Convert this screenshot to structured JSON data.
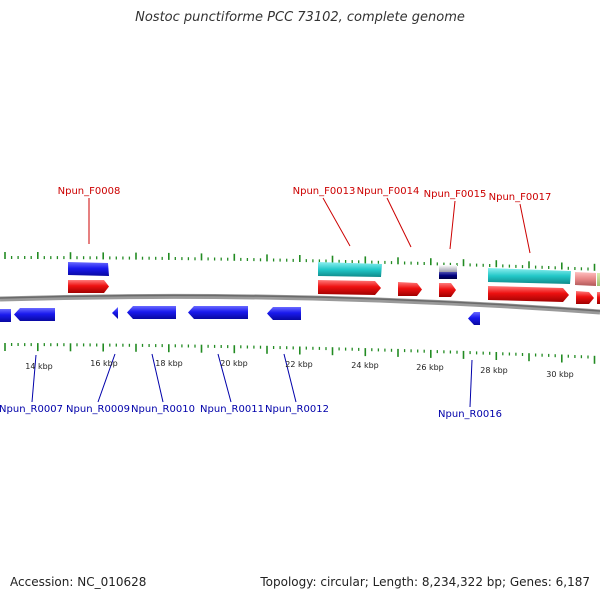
{
  "title": "Nostoc punctiforme PCC 73102, complete genome",
  "footer": {
    "accession": "Accession: NC_010628",
    "summary": "Topology: circular; Length: 8,234,322 bp; Genes: 6,187"
  },
  "colors": {
    "forward_label": "#cc0000",
    "reverse_label": "#0000aa",
    "tick": "#228b22",
    "backbone": "#808080",
    "blue_gene": "#1a1aee",
    "red_gene": "#ee1111",
    "cyan_gene": "#22c8c8",
    "navy_gene": "#000080",
    "pink_gene": "#e88888"
  },
  "kbp_labels": [
    "14 kbp",
    "16 kbp",
    "18 kbp",
    "20 kbp",
    "22 kbp",
    "24 kbp",
    "26 kbp",
    "28 kbp",
    "30 kbp"
  ],
  "forward_gene_labels": [
    "Npun_F0008",
    "Npun_F0013",
    "Npun_F0014",
    "Npun_F0015",
    "Npun_F0017"
  ],
  "reverse_gene_labels": [
    "Npun_R0007",
    "Npun_R0009",
    "Npun_R0010",
    "Npun_R0011",
    "Npun_R0012",
    "Npun_R0016"
  ]
}
